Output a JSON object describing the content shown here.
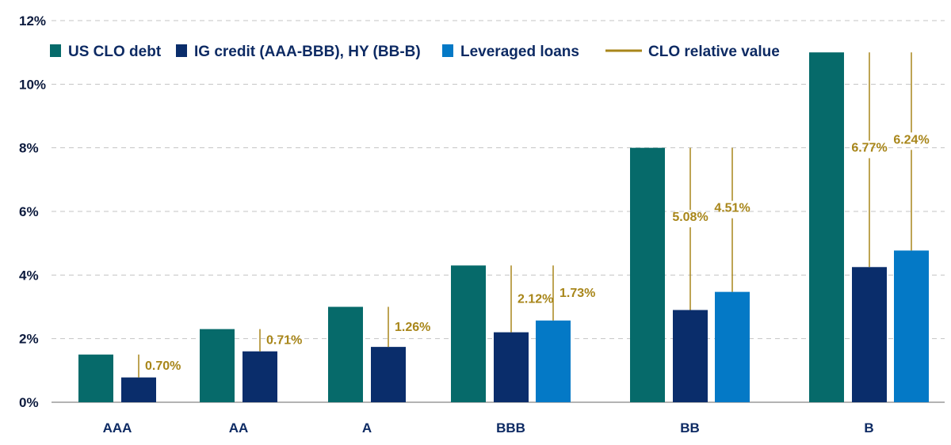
{
  "chart_data": {
    "type": "bar",
    "categories": [
      "AAA",
      "AA",
      "A",
      "BBB",
      "BB",
      "B"
    ],
    "series": [
      {
        "name": "US CLO debt",
        "color": "#066a6a",
        "values": [
          1.5,
          2.3,
          3.0,
          4.3,
          8.0,
          11.0
        ]
      },
      {
        "name": "IG credit (AAA-BBB), HY (BB-B)",
        "color": "#0a2d6b",
        "values": [
          0.78,
          1.6,
          1.74,
          2.2,
          2.9,
          4.25
        ]
      },
      {
        "name": "Leveraged loans",
        "color": "#0479c6",
        "values": [
          null,
          null,
          null,
          2.57,
          3.47,
          4.77
        ]
      }
    ],
    "relative_value": {
      "name": "CLO relative value",
      "color": "#a8861a",
      "ig_hy_labels": [
        "0.70%",
        "0.71%",
        "1.26%",
        "2.12%",
        "5.08%",
        "6.77%"
      ],
      "loan_labels": [
        null,
        null,
        null,
        "1.73%",
        "4.51%",
        "6.24%"
      ]
    },
    "y_ticks": [
      "0%",
      "2%",
      "4%",
      "6%",
      "8%",
      "10%",
      "12%"
    ],
    "ylim": [
      0,
      12
    ],
    "grid": "horizontal-dashed",
    "legend": "top-left"
  }
}
